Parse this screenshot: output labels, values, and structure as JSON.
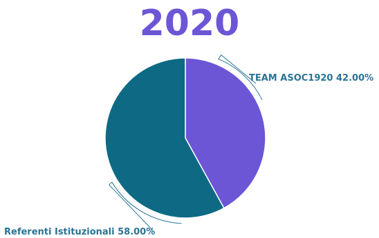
{
  "chart_data": {
    "type": "pie",
    "title": "2020",
    "slices": [
      {
        "label": "TEAM ASOC1920",
        "value": 42.0,
        "display": "TEAM ASOC1920 42.00%",
        "color": "#6C56D6"
      },
      {
        "label": "Referenti Istituzionali",
        "value": 58.0,
        "display": "Referenti Istituzionali 58.00%",
        "color": "#0E6A84"
      }
    ]
  },
  "colors": {
    "title": "#6C56D6",
    "label": "#2A7395",
    "leader": "#2A7395"
  }
}
